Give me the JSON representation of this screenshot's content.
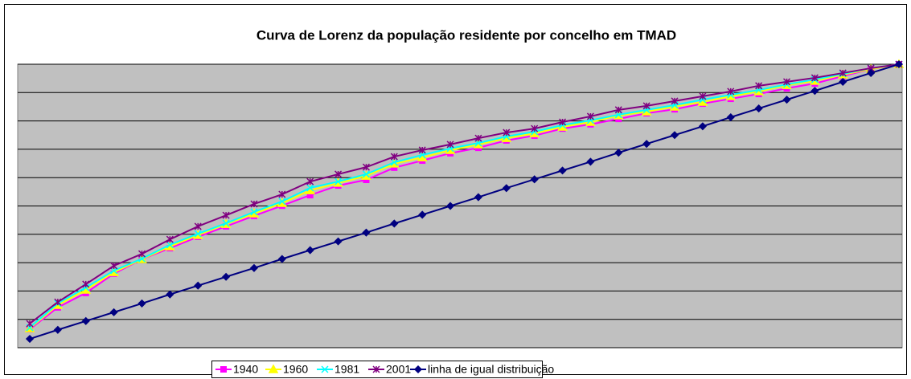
{
  "chart_data": {
    "type": "line",
    "title": "Curva de Lorenz da população residente por concelho em TMAD",
    "categories": [
      null,
      null,
      null,
      null,
      null,
      null,
      null,
      null,
      null,
      null,
      null,
      null,
      null,
      null,
      null,
      null,
      null,
      null,
      null,
      null,
      null,
      null,
      null,
      null,
      null,
      null,
      null,
      null,
      null,
      null,
      null,
      null
    ],
    "ylim": [
      0,
      100
    ],
    "yticks": [
      0,
      10,
      20,
      30,
      40,
      50,
      60,
      70,
      80,
      90,
      100
    ],
    "grid": true,
    "legend": "bottom",
    "series": [
      {
        "name": "1940",
        "color": "#ff00ff",
        "marker": "square",
        "values": [
          6.5,
          14.2,
          19.3,
          26.1,
          31.2,
          35.1,
          39.1,
          42.8,
          46.5,
          50.1,
          53.8,
          57.2,
          59.2,
          63.5,
          66.0,
          68.6,
          70.5,
          73.1,
          74.8,
          77.3,
          78.8,
          80.7,
          82.7,
          84.1,
          86.1,
          87.8,
          89.5,
          91.5,
          93.2,
          95.8,
          98.3,
          100
        ]
      },
      {
        "name": "1960",
        "color": "#ffff00",
        "marker": "triangle",
        "values": [
          6.8,
          15.0,
          20.4,
          26.6,
          31.2,
          35.7,
          39.7,
          43.6,
          47.3,
          51.0,
          55.5,
          58.1,
          60.6,
          64.9,
          67.1,
          69.7,
          71.7,
          73.9,
          75.6,
          77.9,
          79.6,
          81.9,
          83.3,
          85.0,
          86.7,
          88.7,
          90.4,
          92.6,
          94.1,
          96.3,
          98.3,
          100
        ]
      },
      {
        "name": "1981",
        "color": "#00ffff",
        "marker": "cross",
        "values": [
          7.1,
          15.6,
          21.2,
          27.2,
          31.4,
          36.3,
          40.2,
          43.9,
          47.9,
          51.6,
          56.4,
          58.6,
          61.2,
          65.4,
          68.0,
          70.3,
          72.2,
          74.5,
          76.2,
          78.5,
          80.2,
          82.2,
          83.9,
          85.6,
          87.5,
          89.2,
          90.9,
          92.9,
          94.6,
          96.6,
          98.6,
          100
        ]
      },
      {
        "name": "2001",
        "color": "#800080",
        "marker": "star",
        "values": [
          8.5,
          16.1,
          22.4,
          28.9,
          33.1,
          38.2,
          42.8,
          46.7,
          50.7,
          54.1,
          58.6,
          61.2,
          63.7,
          67.4,
          69.7,
          71.7,
          73.9,
          75.9,
          77.3,
          79.6,
          81.6,
          83.9,
          85.3,
          87.0,
          88.7,
          90.4,
          92.4,
          93.8,
          95.2,
          96.9,
          98.6,
          100
        ]
      },
      {
        "name": "linha de igual distribuição",
        "color": "#000080",
        "marker": "diamond",
        "values": [
          3.1,
          6.3,
          9.4,
          12.5,
          15.6,
          18.8,
          21.9,
          25,
          28.1,
          31.3,
          34.4,
          37.5,
          40.6,
          43.8,
          46.9,
          50,
          53.1,
          56.3,
          59.4,
          62.5,
          65.6,
          68.8,
          71.9,
          75,
          78.1,
          81.3,
          84.4,
          87.5,
          90.6,
          93.8,
          96.9,
          100
        ]
      }
    ]
  }
}
